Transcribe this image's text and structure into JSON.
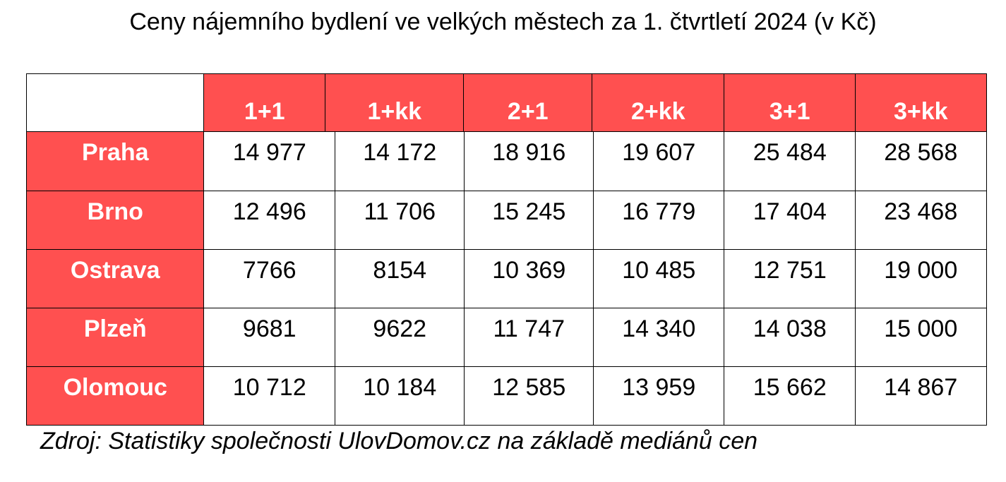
{
  "title": "Ceny nájemního bydlení ve velkých městech za 1. čtvrtletí 2024 (v Kč)",
  "table": {
    "header": [
      "1+1",
      "1+kk",
      "2+1",
      "2+kk",
      "3+1",
      "3+kk"
    ],
    "rows": [
      [
        "Praha",
        "14 977",
        "14 172",
        "18 916",
        "19 607",
        "25 484",
        "28 568"
      ],
      [
        "Brno",
        "12 496",
        "11 706",
        "15 245",
        "16 779",
        "17 404",
        "23 468"
      ],
      [
        "Ostrava",
        "7766",
        "8154",
        "10 369",
        "10 485",
        "12 751",
        "19 000"
      ],
      [
        "Plzeň",
        "9681",
        "9622",
        "11 747",
        "14 340",
        "14 038",
        "15 000"
      ],
      [
        "Olomouc",
        "10 712",
        "10 184",
        "12 585",
        "13 959",
        "15 662",
        "14 867"
      ]
    ]
  },
  "source": "Zdroj: Statistiky společnosti UlovDomov.cz na základě mediánů cen"
}
